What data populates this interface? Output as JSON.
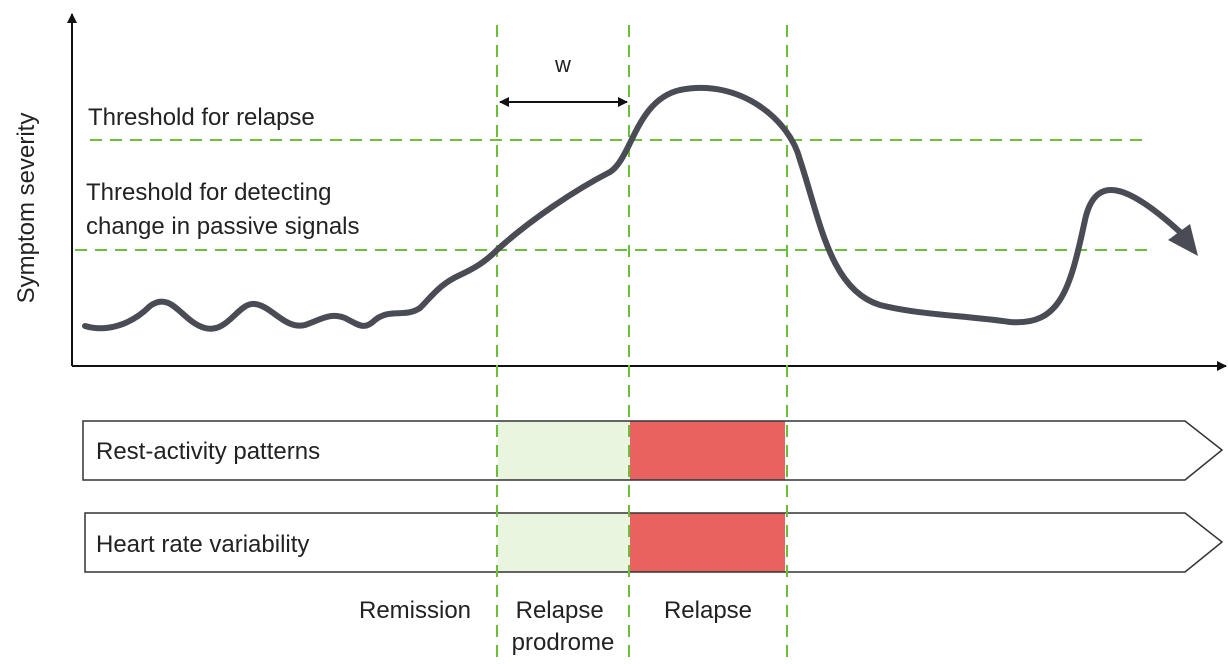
{
  "y_axis_label": "Symptom severity",
  "window_label": "w",
  "thresholds": [
    {
      "lines": [
        "Threshold for relapse"
      ]
    },
    {
      "lines": [
        "Threshold for detecting",
        "change in passive signals"
      ]
    }
  ],
  "tracks": [
    {
      "label": "Rest-activity patterns"
    },
    {
      "label": "Heart rate variability"
    }
  ],
  "phases": [
    {
      "lines": [
        "Remission"
      ]
    },
    {
      "lines": [
        "Relapse",
        "prodrome"
      ]
    },
    {
      "lines": [
        "Relapse"
      ]
    }
  ]
}
